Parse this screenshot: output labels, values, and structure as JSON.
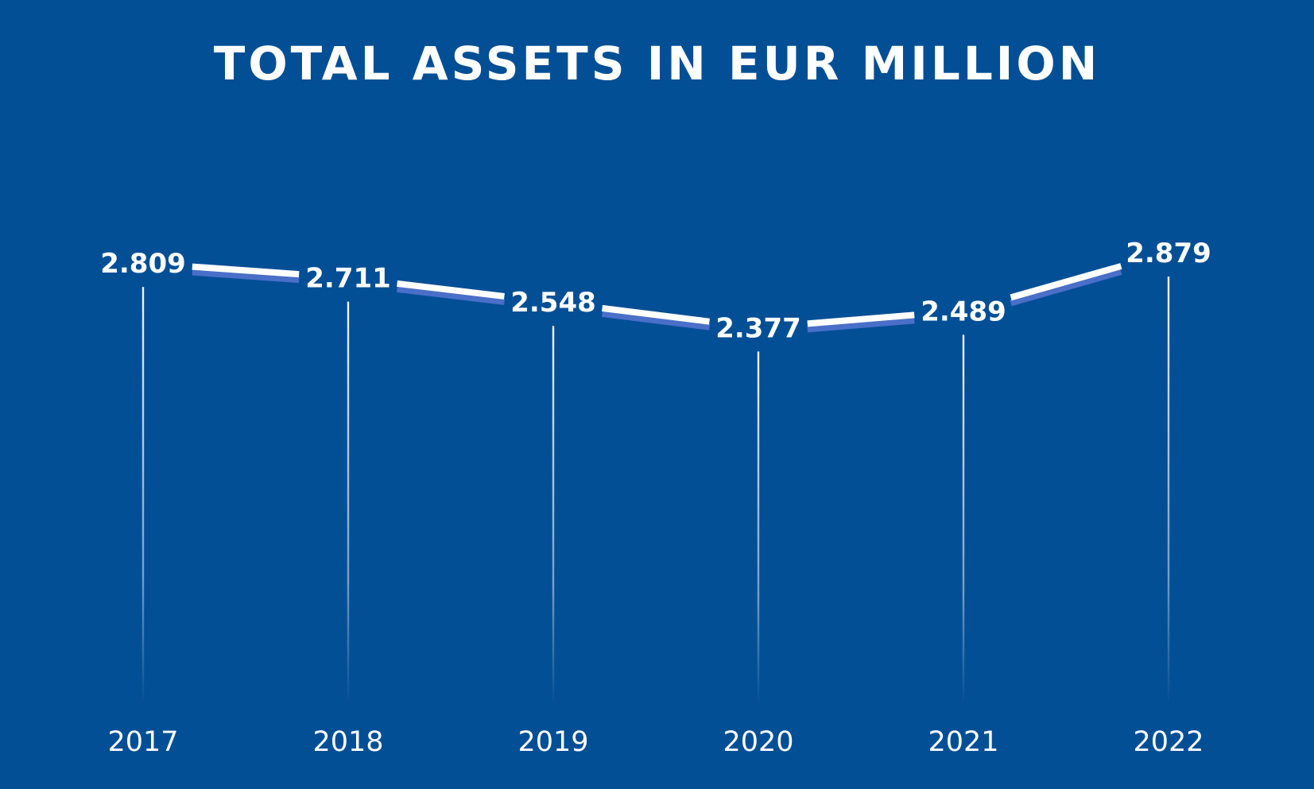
{
  "chart_data": {
    "type": "line",
    "title": "TOTAL ASSETS IN EUR MILLION",
    "categories": [
      "2017",
      "2018",
      "2019",
      "2020",
      "2021",
      "2022"
    ],
    "values": [
      2.809,
      2.711,
      2.548,
      2.377,
      2.489,
      2.879
    ],
    "value_labels": [
      "2.809",
      "2.711",
      "2.548",
      "2.377",
      "2.489",
      "2.879"
    ],
    "xlabel": "",
    "ylabel": "",
    "grid": false,
    "legend": "none"
  },
  "colors": {
    "background": "#034f96",
    "line": "#ffffff",
    "line_shadow": "#4a6fc8",
    "drop_line": "#ffffff"
  }
}
